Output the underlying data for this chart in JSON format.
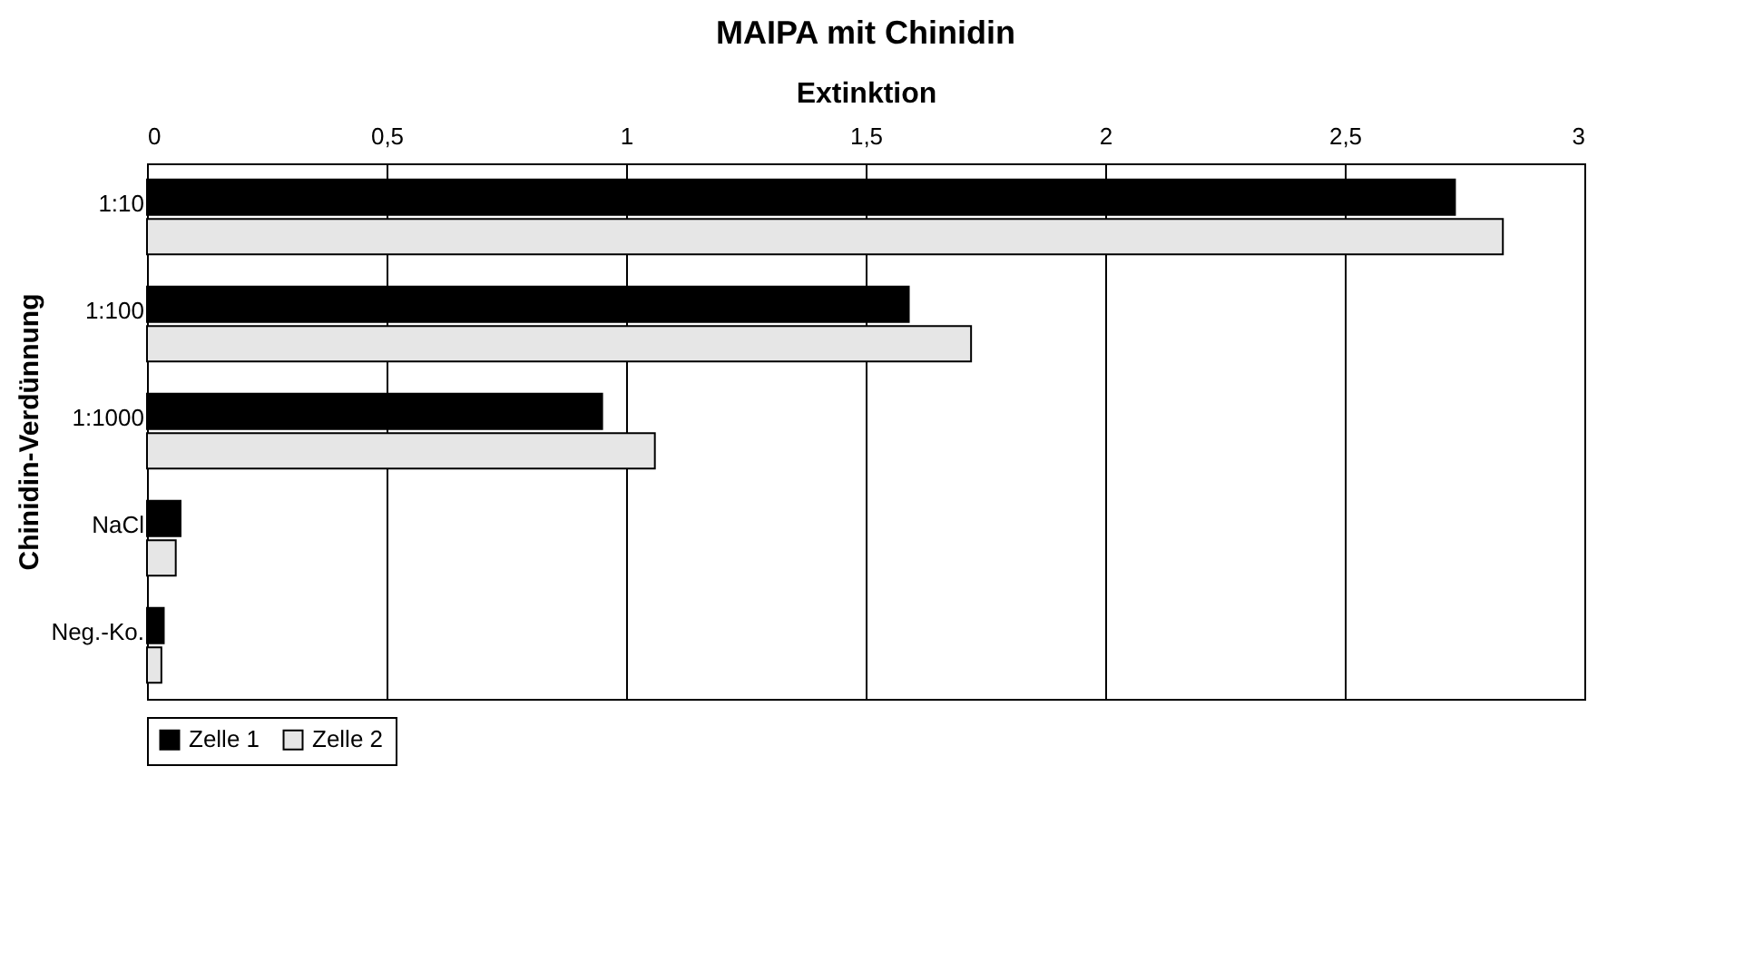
{
  "chart_data": {
    "type": "bar",
    "orientation": "horizontal",
    "title": "MAIPA mit Chinidin",
    "xlabel": "Extinktion",
    "ylabel": "Chinidin-Verdünnung",
    "categories": [
      "1:10",
      "1:100",
      "1:1000",
      "NaCl",
      "Neg.-Ko."
    ],
    "series": [
      {
        "name": "Zelle 1",
        "color": "#000000",
        "values": [
          2.73,
          1.59,
          0.95,
          0.07,
          0.035
        ]
      },
      {
        "name": "Zelle 2",
        "color": "#e6e6e6",
        "values": [
          2.83,
          1.72,
          1.06,
          0.06,
          0.03
        ]
      }
    ],
    "xlim": [
      0,
      3
    ],
    "xticks": [
      0,
      {
        "value": 0.5,
        "label": "0,5"
      },
      1,
      {
        "value": 1.5,
        "label": "1,5"
      },
      2,
      {
        "value": 2.5,
        "label": "2,5"
      },
      3
    ],
    "grid": "x",
    "legend": "bottom"
  }
}
